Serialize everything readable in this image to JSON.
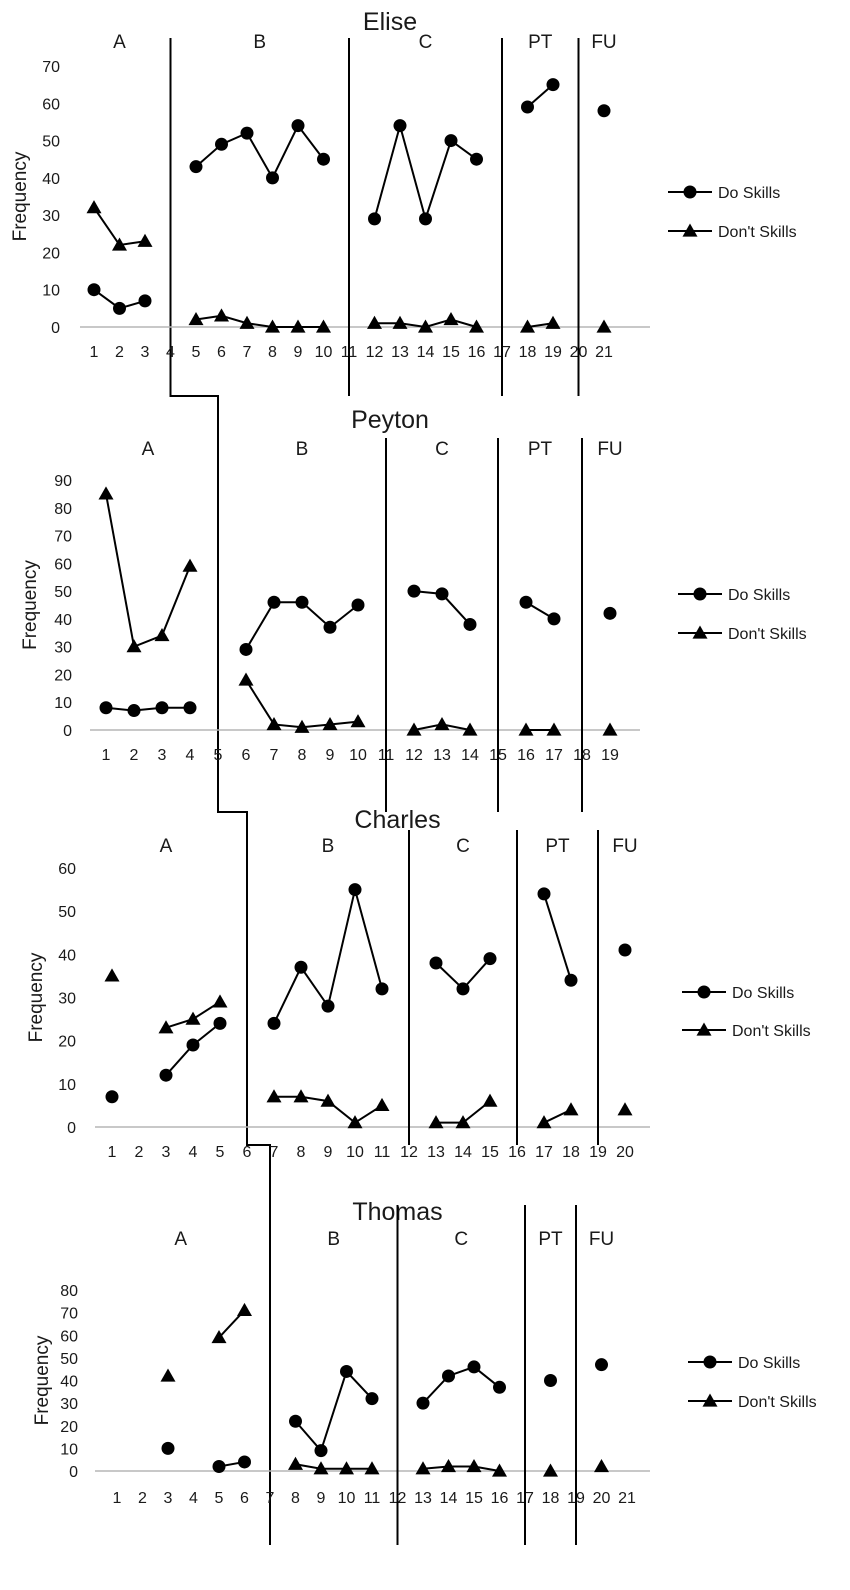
{
  "chart_data": [
    {
      "type": "line",
      "title": "Elise",
      "ylabel": "Frequency",
      "ylim": [
        0,
        70
      ],
      "yticks": [
        0,
        10,
        20,
        30,
        40,
        50,
        60,
        70
      ],
      "xticks": [
        1,
        2,
        3,
        4,
        5,
        6,
        7,
        8,
        9,
        10,
        11,
        12,
        13,
        14,
        15,
        16,
        17,
        18,
        19,
        20,
        21
      ],
      "phase_lines": [
        4,
        11,
        17,
        20
      ],
      "phases": [
        {
          "label": "A",
          "from": 1,
          "to": 3
        },
        {
          "label": "B",
          "from": 5,
          "to": 10
        },
        {
          "label": "C",
          "from": 12,
          "to": 16
        },
        {
          "label": "PT",
          "from": 18,
          "to": 19
        },
        {
          "label": "FU",
          "from": 21,
          "to": 21
        }
      ],
      "series": [
        {
          "name": "Do Skills",
          "marker": "circle",
          "segments": [
            [
              [
                1,
                10
              ],
              [
                2,
                5
              ],
              [
                3,
                7
              ]
            ],
            [
              [
                5,
                43
              ],
              [
                6,
                49
              ],
              [
                7,
                52
              ],
              [
                8,
                40
              ],
              [
                9,
                54
              ],
              [
                10,
                45
              ]
            ],
            [
              [
                12,
                29
              ],
              [
                13,
                54
              ],
              [
                14,
                29
              ],
              [
                15,
                50
              ],
              [
                16,
                45
              ]
            ],
            [
              [
                18,
                59
              ],
              [
                19,
                65
              ]
            ],
            [
              [
                21,
                58
              ]
            ]
          ]
        },
        {
          "name": "Don't Skills",
          "marker": "triangle",
          "segments": [
            [
              [
                1,
                32
              ],
              [
                2,
                22
              ],
              [
                3,
                23
              ]
            ],
            [
              [
                5,
                2
              ],
              [
                6,
                3
              ],
              [
                7,
                1
              ],
              [
                8,
                0
              ],
              [
                9,
                0
              ],
              [
                10,
                0
              ]
            ],
            [
              [
                12,
                1
              ],
              [
                13,
                1
              ],
              [
                14,
                0
              ],
              [
                15,
                2
              ],
              [
                16,
                0
              ]
            ],
            [
              [
                18,
                0
              ],
              [
                19,
                1
              ]
            ],
            [
              [
                21,
                0
              ]
            ]
          ]
        }
      ]
    },
    {
      "type": "line",
      "title": "Peyton",
      "ylabel": "Frequency",
      "ylim": [
        0,
        90
      ],
      "yticks": [
        0,
        10,
        20,
        30,
        40,
        50,
        60,
        70,
        80,
        90
      ],
      "xticks": [
        1,
        2,
        3,
        4,
        5,
        6,
        7,
        8,
        9,
        10,
        11,
        12,
        13,
        14,
        15,
        16,
        17,
        18,
        19
      ],
      "phase_lines": [
        5,
        11,
        15,
        18
      ],
      "phases": [
        {
          "label": "A",
          "from": 1,
          "to": 4
        },
        {
          "label": "B",
          "from": 6,
          "to": 10
        },
        {
          "label": "C",
          "from": 12,
          "to": 14
        },
        {
          "label": "PT",
          "from": 16,
          "to": 17
        },
        {
          "label": "FU",
          "from": 19,
          "to": 19
        }
      ],
      "series": [
        {
          "name": "Do Skills",
          "marker": "circle",
          "segments": [
            [
              [
                1,
                8
              ],
              [
                2,
                7
              ],
              [
                3,
                8
              ],
              [
                4,
                8
              ]
            ],
            [
              [
                6,
                29
              ],
              [
                7,
                46
              ],
              [
                8,
                46
              ],
              [
                9,
                37
              ],
              [
                10,
                45
              ]
            ],
            [
              [
                12,
                50
              ],
              [
                13,
                49
              ],
              [
                14,
                38
              ]
            ],
            [
              [
                16,
                46
              ],
              [
                17,
                40
              ]
            ],
            [
              [
                19,
                42
              ]
            ]
          ]
        },
        {
          "name": "Don't Skills",
          "marker": "triangle",
          "segments": [
            [
              [
                1,
                85
              ],
              [
                2,
                30
              ],
              [
                3,
                34
              ],
              [
                4,
                59
              ]
            ],
            [
              [
                6,
                18
              ],
              [
                7,
                2
              ],
              [
                8,
                1
              ],
              [
                9,
                2
              ],
              [
                10,
                3
              ]
            ],
            [
              [
                12,
                0
              ],
              [
                13,
                2
              ],
              [
                14,
                0
              ]
            ],
            [
              [
                16,
                0
              ],
              [
                17,
                0
              ]
            ],
            [
              [
                19,
                0
              ]
            ]
          ]
        }
      ]
    },
    {
      "type": "line",
      "title": "Charles",
      "ylabel": "Frequency",
      "ylim": [
        0,
        60
      ],
      "yticks": [
        0,
        10,
        20,
        30,
        40,
        50,
        60
      ],
      "xticks": [
        1,
        2,
        3,
        4,
        5,
        6,
        7,
        8,
        9,
        10,
        11,
        12,
        13,
        14,
        15,
        16,
        17,
        18,
        19,
        20
      ],
      "phase_lines": [
        6,
        12,
        16,
        19
      ],
      "phases": [
        {
          "label": "A",
          "from": 1,
          "to": 5
        },
        {
          "label": "B",
          "from": 7,
          "to": 11
        },
        {
          "label": "C",
          "from": 13,
          "to": 15
        },
        {
          "label": "PT",
          "from": 17,
          "to": 18
        },
        {
          "label": "FU",
          "from": 20,
          "to": 20
        }
      ],
      "series": [
        {
          "name": "Do Skills",
          "marker": "circle",
          "segments": [
            [
              [
                1,
                7
              ]
            ],
            [
              [
                3,
                12
              ],
              [
                4,
                19
              ],
              [
                5,
                24
              ]
            ],
            [
              [
                7,
                24
              ],
              [
                8,
                37
              ],
              [
                9,
                28
              ],
              [
                10,
                55
              ],
              [
                11,
                32
              ]
            ],
            [
              [
                13,
                38
              ],
              [
                14,
                32
              ],
              [
                15,
                39
              ]
            ],
            [
              [
                17,
                54
              ],
              [
                18,
                34
              ]
            ],
            [
              [
                20,
                41
              ]
            ]
          ]
        },
        {
          "name": "Don't Skills",
          "marker": "triangle",
          "segments": [
            [
              [
                1,
                35
              ]
            ],
            [
              [
                3,
                23
              ],
              [
                4,
                25
              ],
              [
                5,
                29
              ]
            ],
            [
              [
                7,
                7
              ],
              [
                8,
                7
              ],
              [
                9,
                6
              ],
              [
                10,
                1
              ],
              [
                11,
                5
              ]
            ],
            [
              [
                13,
                1
              ],
              [
                14,
                1
              ],
              [
                15,
                6
              ]
            ],
            [
              [
                17,
                1
              ],
              [
                18,
                4
              ]
            ],
            [
              [
                20,
                4
              ]
            ]
          ]
        }
      ]
    },
    {
      "type": "line",
      "title": "Thomas",
      "ylabel": "Frequency",
      "ylim": [
        0,
        80
      ],
      "yticks": [
        0,
        10,
        20,
        30,
        40,
        50,
        60,
        70,
        80
      ],
      "xticks": [
        1,
        2,
        3,
        4,
        5,
        6,
        7,
        8,
        9,
        10,
        11,
        12,
        13,
        14,
        15,
        16,
        17,
        18,
        19,
        20,
        21
      ],
      "phase_lines": [
        7,
        12,
        17,
        19
      ],
      "phases": [
        {
          "label": "A",
          "from": 1,
          "to": 6
        },
        {
          "label": "B",
          "from": 8,
          "to": 11
        },
        {
          "label": "C",
          "from": 13,
          "to": 16
        },
        {
          "label": "PT",
          "from": 18,
          "to": 18
        },
        {
          "label": "FU",
          "from": 20,
          "to": 20
        }
      ],
      "series": [
        {
          "name": "Do Skills",
          "marker": "circle",
          "segments": [
            [
              [
                3,
                10
              ]
            ],
            [
              [
                5,
                2
              ],
              [
                6,
                4
              ]
            ],
            [
              [
                8,
                22
              ],
              [
                9,
                9
              ],
              [
                10,
                44
              ],
              [
                11,
                32
              ]
            ],
            [
              [
                13,
                30
              ],
              [
                14,
                42
              ],
              [
                15,
                46
              ],
              [
                16,
                37
              ]
            ],
            [
              [
                18,
                40
              ]
            ],
            [
              [
                20,
                47
              ]
            ]
          ]
        },
        {
          "name": "Don't Skills",
          "marker": "triangle",
          "segments": [
            [
              [
                3,
                42
              ]
            ],
            [
              [
                5,
                59
              ],
              [
                6,
                71
              ]
            ],
            [
              [
                8,
                3
              ],
              [
                9,
                1
              ],
              [
                10,
                1
              ],
              [
                11,
                1
              ]
            ],
            [
              [
                13,
                1
              ],
              [
                14,
                2
              ],
              [
                15,
                2
              ],
              [
                16,
                0
              ]
            ],
            [
              [
                18,
                0
              ]
            ],
            [
              [
                20,
                2
              ]
            ]
          ]
        }
      ]
    }
  ]
}
